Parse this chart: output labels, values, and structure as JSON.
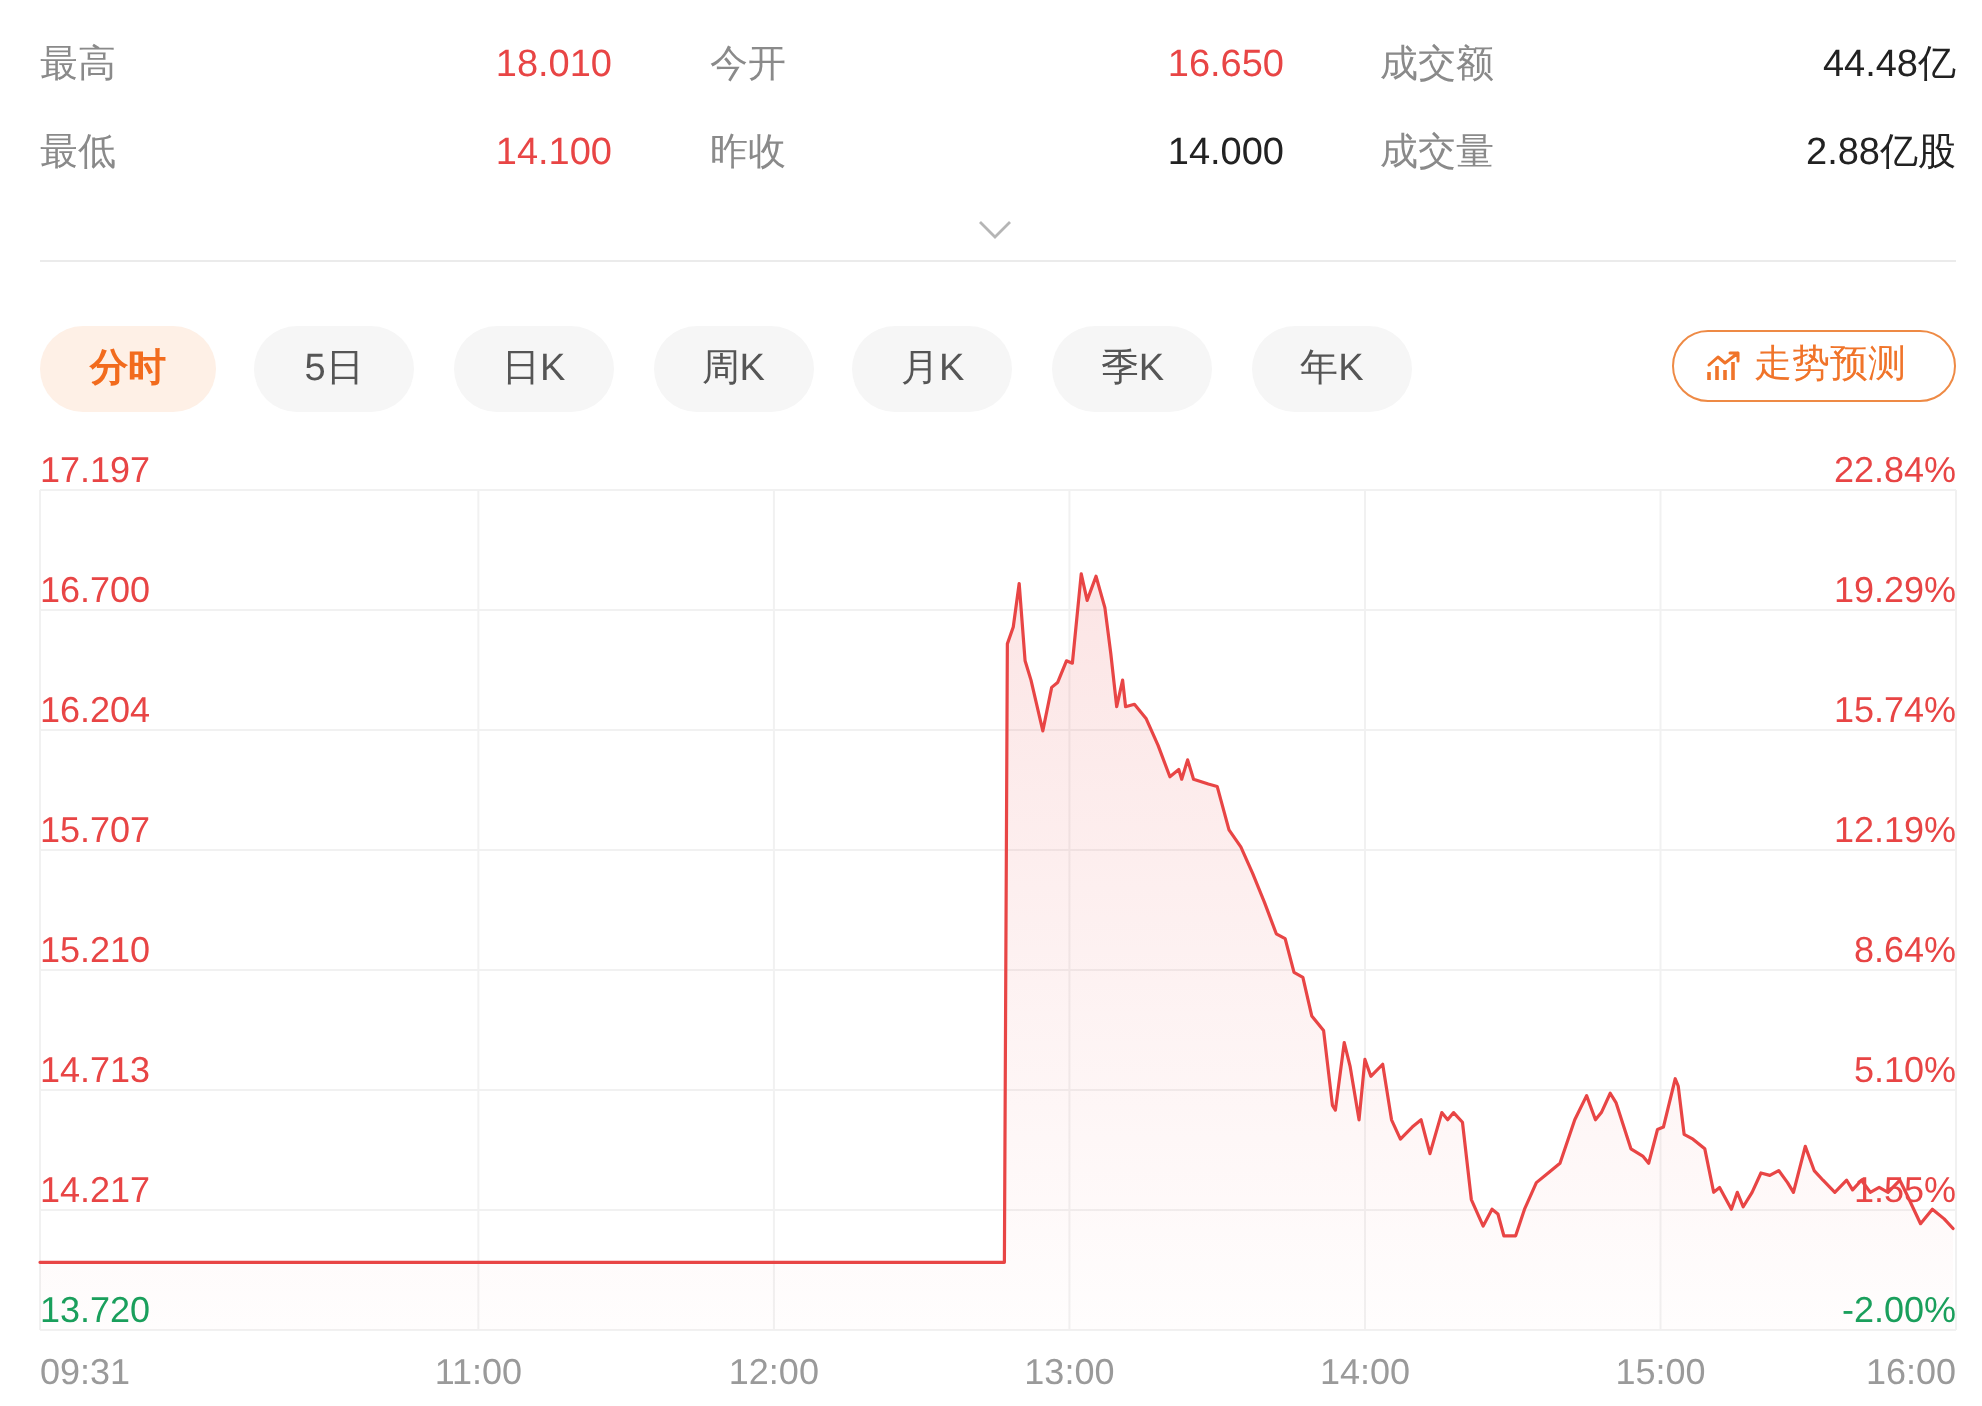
{
  "chart_data": [
    {
      "type": "other",
      "annotations": [
        "最高",
        "18.010",
        "今开",
        "16.650",
        "成交额",
        "44.48亿",
        "最低",
        "14.100",
        "昨收",
        "14.000",
        "成交量",
        "2.88亿股"
      ]
    },
    {
      "type": "other",
      "annotations": [
        "分时",
        "5日",
        "日K",
        "周K",
        "月K",
        "季K",
        "年K",
        "走势预测"
      ]
    },
    {
      "type": "area",
      "x": [
        9.5167,
        12.78,
        12.79,
        12.81,
        12.83,
        12.85,
        12.87,
        12.91,
        12.94,
        12.96,
        12.99,
        13.01,
        13.04,
        13.06,
        13.09,
        13.12,
        13.14,
        13.16,
        13.18,
        13.19,
        13.22,
        13.26,
        13.3,
        13.34,
        13.37,
        13.38,
        13.4,
        13.42,
        13.47,
        13.5,
        13.54,
        13.58,
        13.62,
        13.66,
        13.7,
        13.73,
        13.76,
        13.79,
        13.82,
        13.86,
        13.89,
        13.9,
        13.93,
        13.95,
        13.98,
        14.0,
        14.02,
        14.06,
        14.09,
        14.12,
        14.16,
        14.19,
        14.22,
        14.26,
        14.28,
        14.3,
        14.33,
        14.36,
        14.4,
        14.43,
        14.45,
        14.47,
        14.51,
        14.54,
        14.58,
        14.62,
        14.66,
        14.71,
        14.75,
        14.78,
        14.8,
        14.83,
        14.85,
        14.9,
        14.94,
        14.96,
        14.99,
        15.01,
        15.05,
        15.06,
        15.08,
        15.11,
        15.15,
        15.18,
        15.2,
        15.24,
        15.26,
        15.28,
        15.31,
        15.34,
        15.37,
        15.4,
        15.43,
        15.45,
        15.49,
        15.52,
        15.55,
        15.59,
        15.63,
        15.65,
        15.68,
        15.71,
        15.74,
        15.77,
        15.81,
        15.83,
        15.88,
        15.92,
        15.96,
        15.99
      ],
      "series": [
        {
          "color": "#e84545",
          "values": [
            14.0,
            14.0,
            16.56,
            16.63,
            16.81,
            16.49,
            16.41,
            16.2,
            16.38,
            16.4,
            16.49,
            16.48,
            16.85,
            16.74,
            16.84,
            16.71,
            16.52,
            16.3,
            16.41,
            16.3,
            16.31,
            16.25,
            16.14,
            16.01,
            16.04,
            16.0,
            16.08,
            16.0,
            15.98,
            15.97,
            15.79,
            15.72,
            15.61,
            15.49,
            15.36,
            15.34,
            15.2,
            15.18,
            15.02,
            14.96,
            14.65,
            14.63,
            14.91,
            14.81,
            14.59,
            14.84,
            14.77,
            14.82,
            14.59,
            14.51,
            14.56,
            14.59,
            14.45,
            14.62,
            14.59,
            14.62,
            14.58,
            14.26,
            14.15,
            14.22,
            14.2,
            14.11,
            14.11,
            14.22,
            14.33,
            14.37,
            14.41,
            14.59,
            14.69,
            14.59,
            14.62,
            14.7,
            14.66,
            14.47,
            14.44,
            14.41,
            14.55,
            14.56,
            14.76,
            14.73,
            14.53,
            14.51,
            14.47,
            14.29,
            14.31,
            14.22,
            14.29,
            14.23,
            14.29,
            14.37,
            14.36,
            14.38,
            14.33,
            14.29,
            14.48,
            14.38,
            14.34,
            14.29,
            14.34,
            14.3,
            14.34,
            14.29,
            14.31,
            14.29,
            14.34,
            14.29,
            14.16,
            14.22,
            14.18,
            14.14
          ]
        }
      ],
      "xlim": [
        9.5167,
        16
      ],
      "xticks": [
        {
          "value": 9.5167,
          "label": "09:31"
        },
        {
          "value": 11,
          "label": "11:00"
        },
        {
          "value": 12,
          "label": "12:00"
        },
        {
          "value": 13,
          "label": "13:00"
        },
        {
          "value": 14,
          "label": "14:00"
        },
        {
          "value": 15,
          "label": "15:00"
        },
        {
          "value": 16,
          "label": "16:00"
        }
      ],
      "ylim": [
        13.72,
        17.197
      ],
      "yticks": [
        17.197,
        {
          "value": 16.7,
          "label": "16.700"
        },
        16.204,
        15.707,
        {
          "value": 15.21,
          "label": "15.210"
        },
        14.713,
        14.217,
        {
          "value": 13.72,
          "label": "13.720"
        }
      ],
      "y2lim": [
        -2,
        22.84
      ],
      "y2ticks": [
        {
          "value": 22.84,
          "label": "22.84%"
        },
        {
          "value": 19.29,
          "label": "19.29%"
        },
        {
          "value": 15.74,
          "label": "15.74%"
        },
        {
          "value": 12.19,
          "label": "12.19%"
        },
        {
          "value": 8.64,
          "label": "8.64%"
        },
        {
          "value": 5.1,
          "label": "5.10%"
        },
        {
          "value": 1.55,
          "label": "1.55%"
        },
        {
          "value": -2,
          "label": "-2.00%"
        }
      ],
      "grid": true
    }
  ]
}
